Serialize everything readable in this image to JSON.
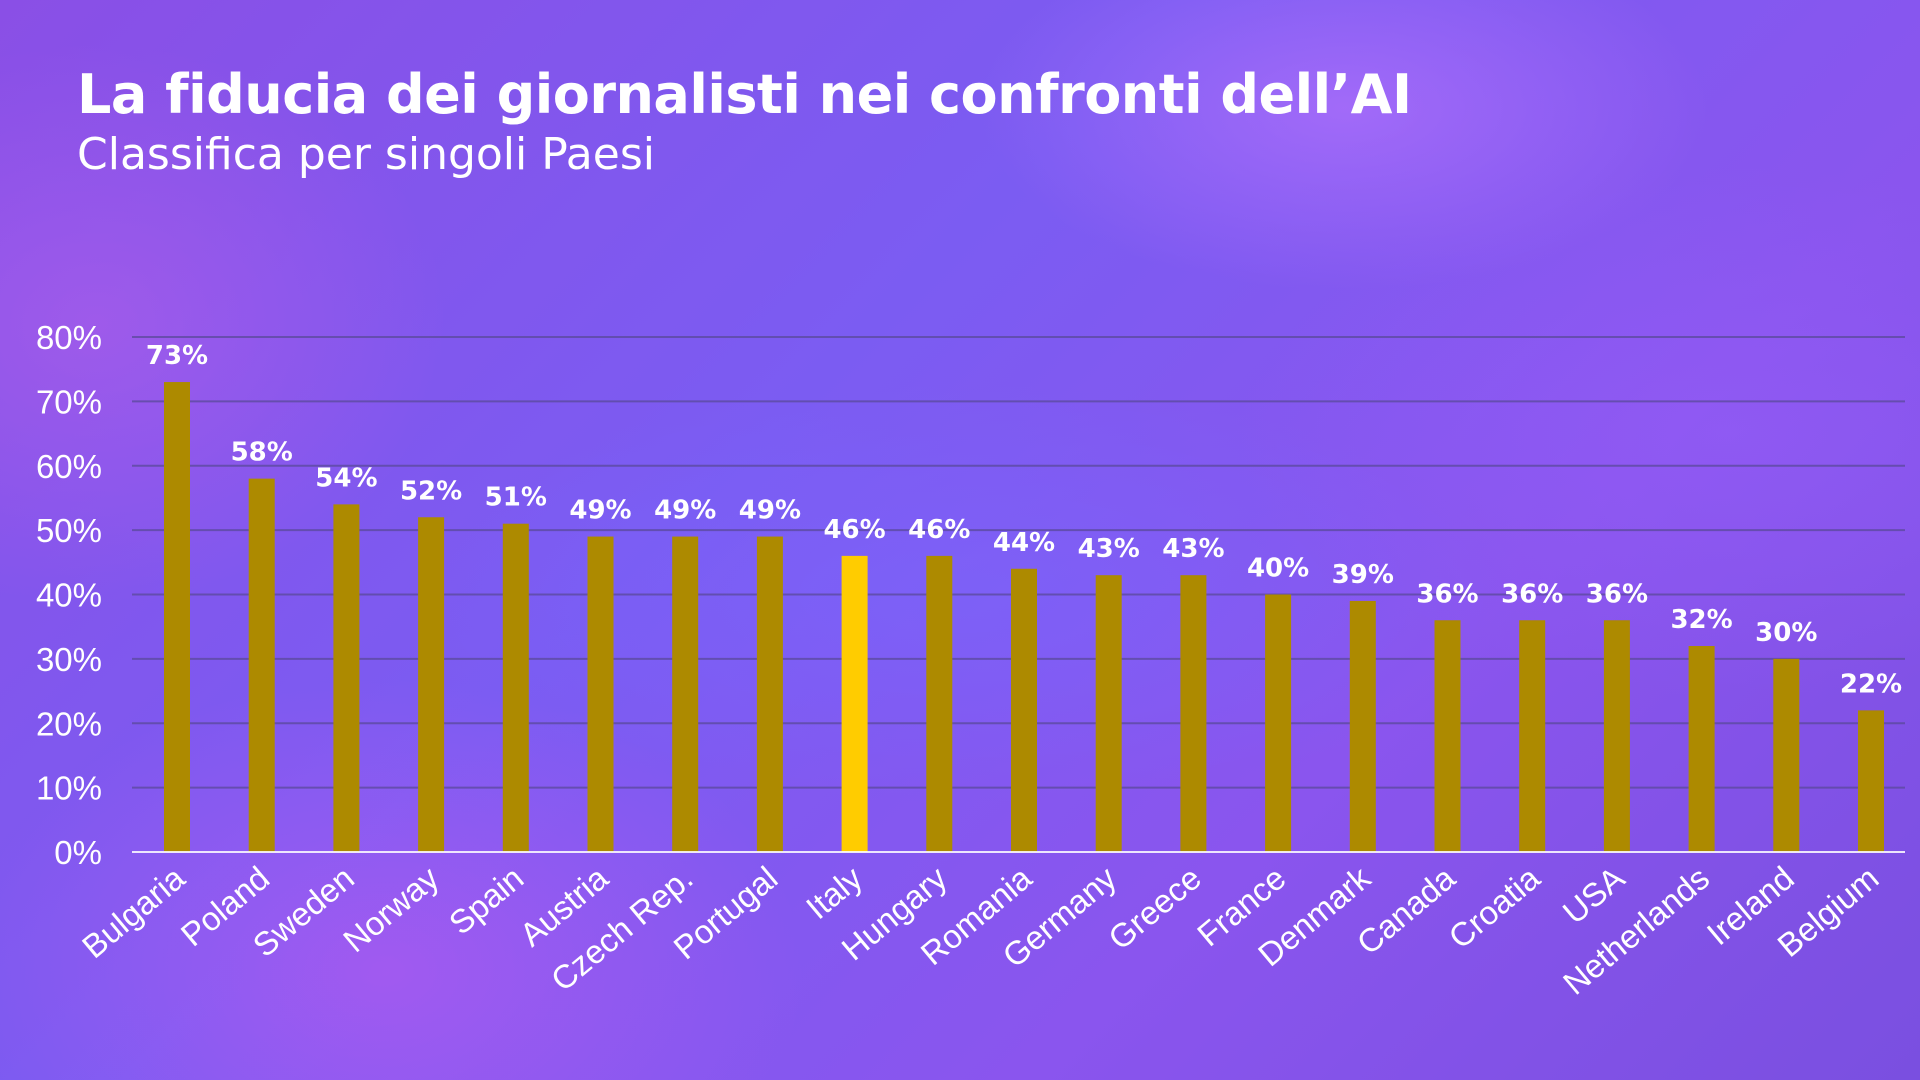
{
  "header": {
    "title": "La fiducia dei giornalisti nei confronti dell’AI",
    "subtitle": "Classifica per singoli Paesi"
  },
  "colors": {
    "bar": "#ad8a00",
    "highlight_bar": "#ffcc00",
    "text": "#ffffff",
    "gridline": "#5a4a9a",
    "axis": "#ffffff"
  },
  "chart_data": {
    "type": "bar",
    "title": "La fiducia dei giornalisti nei confronti dell’AI",
    "subtitle": "Classifica per singoli Paesi",
    "xlabel": "",
    "ylabel": "",
    "categories": [
      "Bulgaria",
      "Poland",
      "Sweden",
      "Norway",
      "Spain",
      "Austria",
      "Czech Rep.",
      "Portugal",
      "Italy",
      "Hungary",
      "Romania",
      "Germany",
      "Greece",
      "France",
      "Denmark",
      "Canada",
      "Croatia",
      "USA",
      "Netherlands",
      "Ireland",
      "Belgium"
    ],
    "values": [
      73,
      58,
      54,
      52,
      51,
      49,
      49,
      49,
      46,
      46,
      44,
      43,
      43,
      40,
      39,
      36,
      36,
      36,
      32,
      30,
      22
    ],
    "data_labels": [
      "73%",
      "58%",
      "54%",
      "52%",
      "51%",
      "49%",
      "49%",
      "49%",
      "46%",
      "46%",
      "44%",
      "43%",
      "43%",
      "40%",
      "39%",
      "36%",
      "36%",
      "36%",
      "32%",
      "30%",
      "22%"
    ],
    "highlight": "Italy",
    "ylim": [
      0,
      80
    ],
    "yticks": [
      0,
      10,
      20,
      30,
      40,
      50,
      60,
      70,
      80
    ],
    "ytick_labels": [
      "0%",
      "10%",
      "20%",
      "30%",
      "40%",
      "50%",
      "60%",
      "70%",
      "80%"
    ],
    "grid": true,
    "legend": "none"
  }
}
